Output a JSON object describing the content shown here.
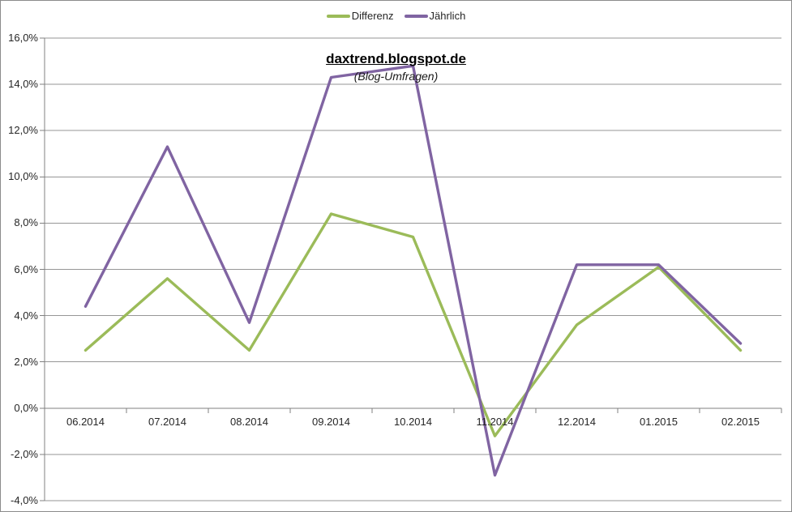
{
  "window": {
    "background": "#ffffff",
    "border_color": "#8c8c8c"
  },
  "legend": {
    "position": "top-center",
    "items": [
      {
        "label": "Differenz",
        "color": "#9BBB59"
      },
      {
        "label": "Jährlich",
        "color": "#8064A2"
      }
    ]
  },
  "chart_data": {
    "type": "line",
    "title": "daxtrend.blogspot.de",
    "subtitle": "(Blog-Umfragen)",
    "xlabel": "",
    "ylabel": "",
    "categories": [
      "06.2014",
      "07.2014",
      "08.2014",
      "09.2014",
      "10.2014",
      "11.2014",
      "12.2014",
      "01.2015",
      "02.2015"
    ],
    "series": [
      {
        "name": "Differenz",
        "color": "#9BBB59",
        "values": [
          2.5,
          5.6,
          2.5,
          8.4,
          7.4,
          -1.2,
          3.6,
          6.1,
          2.5
        ]
      },
      {
        "name": "Jährlich",
        "color": "#8064A2",
        "values": [
          4.4,
          11.3,
          3.7,
          14.3,
          14.8,
          -2.9,
          6.2,
          6.2,
          2.8
        ]
      }
    ],
    "ylim": [
      -4,
      16
    ],
    "ytick_step": 2,
    "ytick_labels": [
      "16,0%",
      "14,0%",
      "12,0%",
      "10,0%",
      "8,0%",
      "6,0%",
      "4,0%",
      "2,0%",
      "0,0%",
      "-2,0%",
      "-4,0%"
    ],
    "grid": true,
    "legend_position": "top-center",
    "grid_color": "#969696",
    "axis_color": "#808080",
    "line_width": 3.4
  }
}
